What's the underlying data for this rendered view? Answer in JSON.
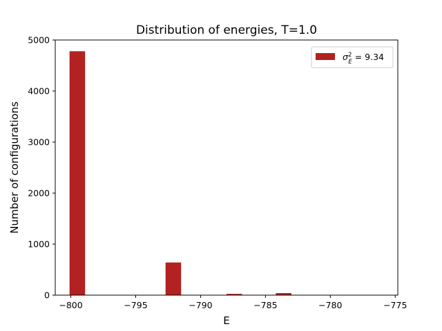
{
  "chart_data": {
    "type": "bar",
    "title": "Distribution of energies, T=1.0",
    "xlabel": "E",
    "ylabel": "Number of configurations",
    "xlim": [
      -801.2,
      -774.8
    ],
    "ylim": [
      0,
      5000
    ],
    "xticks": [
      -800,
      -795,
      -790,
      -785,
      -780,
      -775
    ],
    "xtick_labels": [
      "−800",
      "−795",
      "−790",
      "−785",
      "−780",
      "−775"
    ],
    "yticks": [
      0,
      1000,
      2000,
      3000,
      4000,
      5000
    ],
    "ytick_labels": [
      "0",
      "1000",
      "2000",
      "3000",
      "4000",
      "5000"
    ],
    "grid": false,
    "legend_placement": "top-right",
    "bar_color": "#b22222",
    "bars": [
      {
        "x0": -800.1,
        "x1": -798.9,
        "value": 4780
      },
      {
        "x0": -792.7,
        "x1": -791.5,
        "value": 640
      },
      {
        "x0": -788.0,
        "x1": -786.8,
        "value": 25
      },
      {
        "x0": -784.2,
        "x1": -783.0,
        "value": 40
      }
    ],
    "series": [
      {
        "legend_base": "σ",
        "legend_sup": "2",
        "legend_sub": "E",
        "legend_value": " = 9.34"
      }
    ]
  }
}
